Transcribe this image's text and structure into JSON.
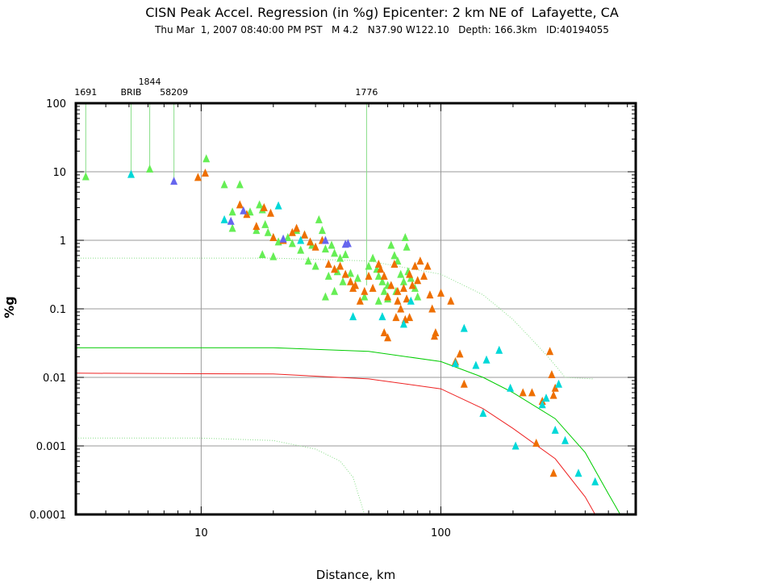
{
  "chart_data": {
    "type": "scatter",
    "title": "CISN Peak Accel. Regression (in %g) Epicenter: 2 km NE of  Lafayette, CA",
    "subtitle": "Thu Mar  1, 2007 08:40:00 PM PST   M 4.2   N37.90 W122.10   Depth: 166.3km   ID:40194055",
    "xlabel": "Distance, km",
    "ylabel": "%g",
    "xscale": "log",
    "yscale": "log",
    "xlim": [
      3,
      650
    ],
    "ylim": [
      0.0001,
      100
    ],
    "grid": true,
    "x_ticks": [
      {
        "value": 10,
        "label": "10"
      },
      {
        "value": 100,
        "label": "100"
      }
    ],
    "y_ticks": [
      {
        "value": 100,
        "label": "100"
      },
      {
        "value": 10,
        "label": "10"
      },
      {
        "value": 1,
        "label": "1"
      },
      {
        "value": 0.1,
        "label": "0.1"
      },
      {
        "value": 0.01,
        "label": "0.01"
      },
      {
        "value": 0.001,
        "label": "0.001"
      },
      {
        "value": 0.0001,
        "label": "0.0001"
      }
    ],
    "station_labels": [
      {
        "label": "1691",
        "x": 3.3,
        "y": 8.5
      },
      {
        "label": "BRIB",
        "x": 5.1,
        "y": 9.2
      },
      {
        "label": "1844",
        "x": 6.1,
        "y": 11.0
      },
      {
        "label": "58209",
        "x": 7.7,
        "y": 7.3
      },
      {
        "label": "1776",
        "x": 49.0,
        "y": 0.22
      }
    ],
    "colors": {
      "green": "#66ee55",
      "orange": "#ee6f00",
      "cyan": "#00d8d8",
      "purple": "#6666ee",
      "grid": "#999999",
      "curve_green": "#00cc00",
      "curve_red": "#ee2222",
      "curve_dotted": "#88dd88"
    },
    "series": [
      {
        "color": "green",
        "points": [
          [
            3.3,
            8.5
          ],
          [
            6.1,
            11.0
          ],
          [
            10.5,
            15.5
          ],
          [
            12.5,
            6.5
          ],
          [
            14.5,
            6.5
          ],
          [
            13.5,
            2.6
          ],
          [
            13.5,
            1.5
          ],
          [
            16,
            2.6
          ],
          [
            17.5,
            3.3
          ],
          [
            18,
            2.8
          ],
          [
            17,
            1.4
          ],
          [
            18.5,
            1.7
          ],
          [
            19,
            1.3
          ],
          [
            20,
            1.1
          ],
          [
            21,
            0.95
          ],
          [
            18,
            0.62
          ],
          [
            20,
            0.58
          ],
          [
            23,
            1.1
          ],
          [
            24,
            0.9
          ],
          [
            25,
            1.4
          ],
          [
            27,
            1.2
          ],
          [
            26,
            0.72
          ],
          [
            29,
            0.85
          ],
          [
            31,
            2.0
          ],
          [
            32,
            1.4
          ],
          [
            28,
            0.5
          ],
          [
            30,
            0.42
          ],
          [
            33,
            0.75
          ],
          [
            35,
            0.85
          ],
          [
            36,
            0.65
          ],
          [
            38,
            0.55
          ],
          [
            40,
            0.62
          ],
          [
            34,
            0.3
          ],
          [
            37,
            0.35
          ],
          [
            39,
            0.25
          ],
          [
            42,
            0.33
          ],
          [
            36,
            0.18
          ],
          [
            33,
            0.15
          ],
          [
            45,
            0.28
          ],
          [
            50,
            0.42
          ],
          [
            52,
            0.55
          ],
          [
            54,
            0.38
          ],
          [
            55,
            0.3
          ],
          [
            57,
            0.25
          ],
          [
            58,
            0.18
          ],
          [
            60,
            0.22
          ],
          [
            62,
            0.85
          ],
          [
            64,
            0.6
          ],
          [
            66,
            0.5
          ],
          [
            68,
            0.32
          ],
          [
            70,
            0.25
          ],
          [
            71,
            1.1
          ],
          [
            72,
            0.8
          ],
          [
            73,
            0.35
          ],
          [
            75,
            0.28
          ],
          [
            78,
            0.2
          ],
          [
            80,
            0.15
          ],
          [
            65,
            0.18
          ],
          [
            60,
            0.14
          ],
          [
            55,
            0.13
          ],
          [
            48,
            0.15
          ]
        ]
      },
      {
        "color": "orange",
        "points": [
          [
            9.7,
            8.3
          ],
          [
            10.4,
            9.6
          ],
          [
            14.5,
            3.3
          ],
          [
            15.5,
            2.4
          ],
          [
            17,
            1.6
          ],
          [
            18.3,
            3.0
          ],
          [
            19.5,
            2.5
          ],
          [
            20,
            1.1
          ],
          [
            22,
            1.0
          ],
          [
            24,
            1.3
          ],
          [
            25,
            1.5
          ],
          [
            27,
            1.2
          ],
          [
            28.5,
            0.95
          ],
          [
            30,
            0.8
          ],
          [
            32,
            1.0
          ],
          [
            34,
            0.45
          ],
          [
            36,
            0.38
          ],
          [
            38,
            0.42
          ],
          [
            40,
            0.32
          ],
          [
            42,
            0.25
          ],
          [
            43,
            0.2
          ],
          [
            44,
            0.22
          ],
          [
            46,
            0.13
          ],
          [
            48,
            0.18
          ],
          [
            50,
            0.3
          ],
          [
            52,
            0.2
          ],
          [
            55,
            0.45
          ],
          [
            56,
            0.38
          ],
          [
            58,
            0.3
          ],
          [
            60,
            0.15
          ],
          [
            62,
            0.22
          ],
          [
            64,
            0.45
          ],
          [
            66,
            0.18
          ],
          [
            68,
            0.1
          ],
          [
            70,
            0.2
          ],
          [
            71,
            0.07
          ],
          [
            72,
            0.14
          ],
          [
            74,
            0.32
          ],
          [
            76,
            0.22
          ],
          [
            78,
            0.42
          ],
          [
            80,
            0.26
          ],
          [
            82,
            0.5
          ],
          [
            85,
            0.3
          ],
          [
            88,
            0.42
          ],
          [
            90,
            0.16
          ],
          [
            92,
            0.1
          ],
          [
            94,
            0.04
          ],
          [
            95,
            0.045
          ],
          [
            60,
            0.038
          ],
          [
            58,
            0.045
          ],
          [
            66,
            0.13
          ],
          [
            74,
            0.075
          ],
          [
            65,
            0.075
          ],
          [
            100,
            0.17
          ],
          [
            110,
            0.13
          ],
          [
            115,
            0.017
          ],
          [
            120,
            0.022
          ],
          [
            125,
            0.008
          ],
          [
            220,
            0.006
          ],
          [
            240,
            0.006
          ],
          [
            265,
            0.0045
          ],
          [
            285,
            0.024
          ],
          [
            290,
            0.011
          ],
          [
            295,
            0.0055
          ],
          [
            300,
            0.007
          ],
          [
            250,
            0.0011
          ],
          [
            295,
            0.0004
          ]
        ]
      },
      {
        "color": "cyan",
        "points": [
          [
            5.1,
            9.2
          ],
          [
            12.5,
            2.0
          ],
          [
            21,
            3.2
          ],
          [
            26,
            1.0
          ],
          [
            43,
            0.077
          ],
          [
            57,
            0.077
          ],
          [
            70,
            0.06
          ],
          [
            75,
            0.13
          ],
          [
            115,
            0.016
          ],
          [
            125,
            0.052
          ],
          [
            140,
            0.015
          ],
          [
            150,
            0.003
          ],
          [
            155,
            0.018
          ],
          [
            175,
            0.025
          ],
          [
            195,
            0.007
          ],
          [
            205,
            0.001
          ],
          [
            265,
            0.004
          ],
          [
            275,
            0.005
          ],
          [
            300,
            0.0017
          ],
          [
            310,
            0.008
          ],
          [
            330,
            0.0012
          ],
          [
            375,
            0.0004
          ],
          [
            440,
            0.0003
          ]
        ]
      },
      {
        "color": "purple",
        "points": [
          [
            7.7,
            7.3
          ],
          [
            13.3,
            1.9
          ],
          [
            15,
            2.7
          ],
          [
            22,
            1.05
          ],
          [
            33,
            1.0
          ],
          [
            40,
            0.88
          ],
          [
            41,
            0.9
          ]
        ]
      }
    ],
    "curves": [
      {
        "color": "curve_green",
        "style": "solid",
        "points": [
          [
            3,
            0.027
          ],
          [
            20,
            0.027
          ],
          [
            50,
            0.024
          ],
          [
            100,
            0.017
          ],
          [
            150,
            0.01
          ],
          [
            200,
            0.006
          ],
          [
            300,
            0.0025
          ],
          [
            400,
            0.0008
          ],
          [
            500,
            0.0002
          ],
          [
            560,
            0.0001
          ]
        ]
      },
      {
        "color": "curve_red",
        "style": "solid",
        "points": [
          [
            3,
            0.0115
          ],
          [
            20,
            0.0112
          ],
          [
            50,
            0.0095
          ],
          [
            100,
            0.0068
          ],
          [
            150,
            0.0035
          ],
          [
            200,
            0.0018
          ],
          [
            300,
            0.00065
          ],
          [
            400,
            0.00018
          ],
          [
            440,
            0.0001
          ]
        ]
      },
      {
        "color": "curve_dotted",
        "style": "dotted",
        "points": [
          [
            3,
            0.55
          ],
          [
            20,
            0.55
          ],
          [
            50,
            0.5
          ],
          [
            100,
            0.32
          ],
          [
            150,
            0.16
          ],
          [
            200,
            0.07
          ],
          [
            280,
            0.02
          ],
          [
            330,
            0.01
          ],
          [
            430,
            0.0095
          ]
        ]
      },
      {
        "color": "curve_dotted",
        "style": "dotted",
        "points": [
          [
            3,
            0.0013
          ],
          [
            10,
            0.0013
          ],
          [
            20,
            0.0012
          ],
          [
            30,
            0.0009
          ],
          [
            38,
            0.0006
          ],
          [
            43,
            0.00035
          ],
          [
            48,
            0.0001
          ]
        ]
      }
    ]
  }
}
